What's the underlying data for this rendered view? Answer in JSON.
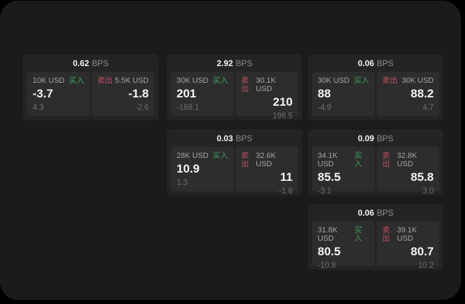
{
  "labels": {
    "buy": "买入",
    "sell": "卖出",
    "bps_unit": "BPS"
  },
  "colors": {
    "buy": "#3fa35c",
    "sell": "#c04f63",
    "panel_bg": "#1b1b1b",
    "card_bg": "#242424",
    "tile_bg": "#2d2d2d"
  },
  "cards": [
    {
      "bps": "0.62",
      "grid": {
        "col": 1,
        "row": 1
      },
      "buy": {
        "amount": "10K USD",
        "value": "-3.7",
        "sub": "4.3"
      },
      "sell": {
        "amount": "5.5K USD",
        "value": "-1.8",
        "sub": "-2.6"
      }
    },
    {
      "bps": "2.92",
      "grid": {
        "col": 2,
        "row": 1
      },
      "buy": {
        "amount": "30K USD",
        "value": "201",
        "sub": "-188.1"
      },
      "sell": {
        "amount": "30.1K USD",
        "value": "210",
        "sub": "196.5"
      }
    },
    {
      "bps": "0.06",
      "grid": {
        "col": 3,
        "row": 1
      },
      "buy": {
        "amount": "30K USD",
        "value": "88",
        "sub": "-4.9"
      },
      "sell": {
        "amount": "30K USD",
        "value": "88.2",
        "sub": "4.7"
      }
    },
    {
      "bps": "0.03",
      "grid": {
        "col": 2,
        "row": 2
      },
      "buy": {
        "amount": "28K USD",
        "value": "10.9",
        "sub": "1.3"
      },
      "sell": {
        "amount": "32.6K USD",
        "value": "11",
        "sub": "-1.8"
      }
    },
    {
      "bps": "0.09",
      "grid": {
        "col": 3,
        "row": 2
      },
      "buy": {
        "amount": "34.1K USD",
        "value": "85.5",
        "sub": "-3.1"
      },
      "sell": {
        "amount": "32.8K USD",
        "value": "85.8",
        "sub": "3.0"
      }
    },
    {
      "bps": "0.06",
      "grid": {
        "col": 3,
        "row": 3
      },
      "buy": {
        "amount": "31.8K USD",
        "value": "80.5",
        "sub": "-10.8"
      },
      "sell": {
        "amount": "39.1K USD",
        "value": "80.7",
        "sub": "10.2"
      }
    }
  ]
}
